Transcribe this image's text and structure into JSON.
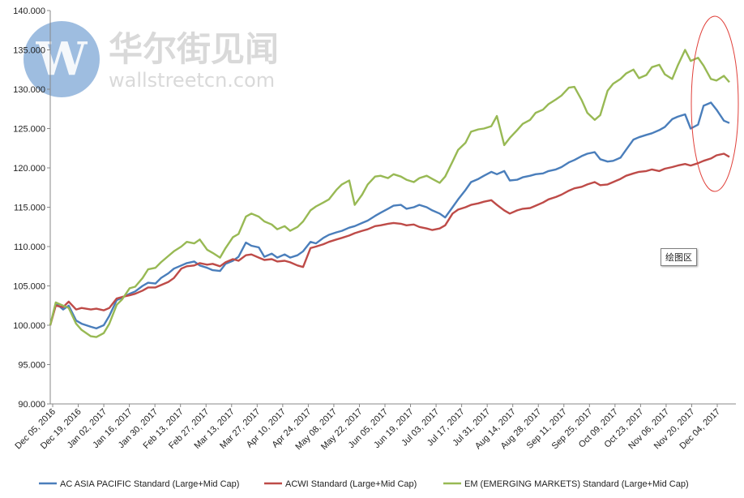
{
  "watermark": {
    "logo_letter": "W",
    "chinese": "华尔街见闻",
    "english": "wallstreetcn.com"
  },
  "tooltip": {
    "label": "绘图区"
  },
  "colors": {
    "asia_pacific": "#4a7ebb",
    "acwi": "#be4b48",
    "em": "#98b954",
    "annotation": "#e0403a",
    "axis": "#888888",
    "watermark_logo": "#4f86c6"
  },
  "chart_data": {
    "type": "line",
    "title": "",
    "xlabel": "",
    "ylabel": "",
    "ylim": [
      90,
      140
    ],
    "y_ticks": [
      90,
      95,
      100,
      105,
      110,
      115,
      120,
      125,
      130,
      135,
      140
    ],
    "y_tick_labels": [
      "90.000",
      "95.000",
      "100.000",
      "105.000",
      "110.000",
      "115.000",
      "120.000",
      "125.000",
      "130.000",
      "135.000",
      "140.000"
    ],
    "x_tick_labels": [
      "Dec 05, 2016",
      "Dec 19, 2016",
      "Jan 02, 2017",
      "Jan 16, 2017",
      "Jan 30, 2017",
      "Feb 13, 2017",
      "Feb 27, 2017",
      "Mar 13, 2017",
      "Mar 27, 2017",
      "Apr 10, 2017",
      "Apr 24, 2017",
      "May 08, 2017",
      "May 22, 2017",
      "Jun 05, 2017",
      "Jun 19, 2017",
      "Jul 03, 2017",
      "Jul 17, 2017",
      "Jul 31, 2017",
      "Aug 14, 2017",
      "Aug 28, 2017",
      "Sep 11, 2017",
      "Sep 25, 2017",
      "Oct 09, 2017",
      "Oct 23, 2017",
      "Nov 06, 2017",
      "Nov 20, 2017",
      "Dec 04, 2017"
    ],
    "grid": false,
    "legend_position": "bottom",
    "series": [
      {
        "name": "AC ASIA PACIFIC Standard (Large+Mid Cap)",
        "color": "#4a7ebb",
        "x": [
          "2016-12-05",
          "2016-12-08",
          "2016-12-12",
          "2016-12-15",
          "2016-12-19",
          "2016-12-22",
          "2016-12-27",
          "2016-12-30",
          "2017-01-03",
          "2017-01-06",
          "2017-01-10",
          "2017-01-13",
          "2017-01-17",
          "2017-01-20",
          "2017-01-24",
          "2017-01-27",
          "2017-01-31",
          "2017-02-03",
          "2017-02-07",
          "2017-02-10",
          "2017-02-14",
          "2017-02-17",
          "2017-02-21",
          "2017-02-24",
          "2017-02-28",
          "2017-03-03",
          "2017-03-07",
          "2017-03-10",
          "2017-03-14",
          "2017-03-17",
          "2017-03-21",
          "2017-03-24",
          "2017-03-28",
          "2017-03-31",
          "2017-04-04",
          "2017-04-07",
          "2017-04-11",
          "2017-04-14",
          "2017-04-18",
          "2017-04-21",
          "2017-04-25",
          "2017-04-28",
          "2017-05-02",
          "2017-05-05",
          "2017-05-09",
          "2017-05-12",
          "2017-05-16",
          "2017-05-19",
          "2017-05-23",
          "2017-05-26",
          "2017-05-30",
          "2017-06-02",
          "2017-06-06",
          "2017-06-09",
          "2017-06-13",
          "2017-06-16",
          "2017-06-20",
          "2017-06-23",
          "2017-06-27",
          "2017-06-30",
          "2017-07-04",
          "2017-07-07",
          "2017-07-11",
          "2017-07-14",
          "2017-07-18",
          "2017-07-21",
          "2017-07-25",
          "2017-07-28",
          "2017-08-01",
          "2017-08-04",
          "2017-08-08",
          "2017-08-11",
          "2017-08-15",
          "2017-08-18",
          "2017-08-22",
          "2017-08-25",
          "2017-08-29",
          "2017-09-01",
          "2017-09-05",
          "2017-09-08",
          "2017-09-12",
          "2017-09-15",
          "2017-09-19",
          "2017-09-22",
          "2017-09-26",
          "2017-09-29",
          "2017-10-03",
          "2017-10-06",
          "2017-10-10",
          "2017-10-13",
          "2017-10-17",
          "2017-10-20",
          "2017-10-24",
          "2017-10-27",
          "2017-10-31",
          "2017-11-03",
          "2017-11-07",
          "2017-11-10",
          "2017-11-14",
          "2017-11-17",
          "2017-11-21",
          "2017-11-24",
          "2017-11-28",
          "2017-12-01",
          "2017-12-05",
          "2017-12-08"
        ],
        "values": [
          100.0,
          102.8,
          102.0,
          102.5,
          100.6,
          100.2,
          99.8,
          99.6,
          100.0,
          101.2,
          103.2,
          103.5,
          104.0,
          104.3,
          105.0,
          105.4,
          105.3,
          106.0,
          106.6,
          107.2,
          107.6,
          107.9,
          108.1,
          107.6,
          107.3,
          107.0,
          106.9,
          107.8,
          108.2,
          108.7,
          110.5,
          110.1,
          109.9,
          108.7,
          109.1,
          108.6,
          109.0,
          108.6,
          108.9,
          109.4,
          110.6,
          110.4,
          111.1,
          111.5,
          111.8,
          112.0,
          112.4,
          112.6,
          113.0,
          113.3,
          113.9,
          114.3,
          114.8,
          115.2,
          115.3,
          114.8,
          115.0,
          115.3,
          115.0,
          114.6,
          114.2,
          113.7,
          115.0,
          116.0,
          117.2,
          118.2,
          118.6,
          119.0,
          119.5,
          119.2,
          119.6,
          118.4,
          118.5,
          118.8,
          119.0,
          119.2,
          119.3,
          119.6,
          119.8,
          120.1,
          120.7,
          121.0,
          121.5,
          121.8,
          122.0,
          121.1,
          120.8,
          120.9,
          121.3,
          122.3,
          123.6,
          123.9,
          124.2,
          124.4,
          124.8,
          125.2,
          126.2,
          126.5,
          126.8,
          125.0,
          125.5,
          127.9,
          128.3,
          127.4,
          126.0,
          125.7
        ]
      },
      {
        "name": "ACWI Standard (Large+Mid Cap)",
        "color": "#be4b48",
        "x": [
          "2016-12-05",
          "2016-12-08",
          "2016-12-12",
          "2016-12-15",
          "2016-12-19",
          "2016-12-22",
          "2016-12-27",
          "2016-12-30",
          "2017-01-03",
          "2017-01-06",
          "2017-01-10",
          "2017-01-13",
          "2017-01-17",
          "2017-01-20",
          "2017-01-24",
          "2017-01-27",
          "2017-01-31",
          "2017-02-03",
          "2017-02-07",
          "2017-02-10",
          "2017-02-14",
          "2017-02-17",
          "2017-02-21",
          "2017-02-24",
          "2017-02-28",
          "2017-03-03",
          "2017-03-07",
          "2017-03-10",
          "2017-03-14",
          "2017-03-17",
          "2017-03-21",
          "2017-03-24",
          "2017-03-28",
          "2017-03-31",
          "2017-04-04",
          "2017-04-07",
          "2017-04-11",
          "2017-04-14",
          "2017-04-18",
          "2017-04-21",
          "2017-04-25",
          "2017-04-28",
          "2017-05-02",
          "2017-05-05",
          "2017-05-09",
          "2017-05-12",
          "2017-05-16",
          "2017-05-19",
          "2017-05-23",
          "2017-05-26",
          "2017-05-30",
          "2017-06-02",
          "2017-06-06",
          "2017-06-09",
          "2017-06-13",
          "2017-06-16",
          "2017-06-20",
          "2017-06-23",
          "2017-06-27",
          "2017-06-30",
          "2017-07-04",
          "2017-07-07",
          "2017-07-11",
          "2017-07-14",
          "2017-07-18",
          "2017-07-21",
          "2017-07-25",
          "2017-07-28",
          "2017-08-01",
          "2017-08-04",
          "2017-08-08",
          "2017-08-11",
          "2017-08-15",
          "2017-08-18",
          "2017-08-22",
          "2017-08-25",
          "2017-08-29",
          "2017-09-01",
          "2017-09-05",
          "2017-09-08",
          "2017-09-12",
          "2017-09-15",
          "2017-09-19",
          "2017-09-22",
          "2017-09-26",
          "2017-09-29",
          "2017-10-03",
          "2017-10-06",
          "2017-10-10",
          "2017-10-13",
          "2017-10-17",
          "2017-10-20",
          "2017-10-24",
          "2017-10-27",
          "2017-10-31",
          "2017-11-03",
          "2017-11-07",
          "2017-11-10",
          "2017-11-14",
          "2017-11-17",
          "2017-11-21",
          "2017-11-24",
          "2017-11-28",
          "2017-12-01",
          "2017-12-05",
          "2017-12-08"
        ],
        "values": [
          100.0,
          102.5,
          102.3,
          103.0,
          102.0,
          102.2,
          102.0,
          102.1,
          101.9,
          102.2,
          103.4,
          103.6,
          103.8,
          104.0,
          104.4,
          104.8,
          104.8,
          105.1,
          105.5,
          106.0,
          107.2,
          107.5,
          107.6,
          107.9,
          107.7,
          107.8,
          107.5,
          108.0,
          108.4,
          108.2,
          108.9,
          109.0,
          108.6,
          108.3,
          108.4,
          108.1,
          108.2,
          108.0,
          107.6,
          107.4,
          109.8,
          110.0,
          110.3,
          110.6,
          110.9,
          111.1,
          111.4,
          111.7,
          112.0,
          112.2,
          112.6,
          112.7,
          112.9,
          113.0,
          112.9,
          112.7,
          112.8,
          112.5,
          112.3,
          112.1,
          112.3,
          112.7,
          114.2,
          114.7,
          115.0,
          115.3,
          115.5,
          115.7,
          115.9,
          115.3,
          114.6,
          114.2,
          114.6,
          114.8,
          114.9,
          115.2,
          115.6,
          116.0,
          116.3,
          116.6,
          117.1,
          117.4,
          117.6,
          117.9,
          118.2,
          117.8,
          117.9,
          118.2,
          118.6,
          119.0,
          119.3,
          119.5,
          119.6,
          119.8,
          119.6,
          119.9,
          120.1,
          120.3,
          120.5,
          120.3,
          120.6,
          120.9,
          121.2,
          121.6,
          121.8,
          121.4
        ]
      },
      {
        "name": "EM (EMERGING  MARKETS) Standard (Large+Mid Cap)",
        "color": "#98b954",
        "x": [
          "2016-12-05",
          "2016-12-08",
          "2016-12-12",
          "2016-12-15",
          "2016-12-19",
          "2016-12-22",
          "2016-12-27",
          "2016-12-30",
          "2017-01-03",
          "2017-01-06",
          "2017-01-10",
          "2017-01-13",
          "2017-01-17",
          "2017-01-20",
          "2017-01-24",
          "2017-01-27",
          "2017-01-31",
          "2017-02-03",
          "2017-02-07",
          "2017-02-10",
          "2017-02-14",
          "2017-02-17",
          "2017-02-21",
          "2017-02-24",
          "2017-02-28",
          "2017-03-03",
          "2017-03-07",
          "2017-03-10",
          "2017-03-14",
          "2017-03-17",
          "2017-03-21",
          "2017-03-24",
          "2017-03-28",
          "2017-03-31",
          "2017-04-04",
          "2017-04-07",
          "2017-04-11",
          "2017-04-14",
          "2017-04-18",
          "2017-04-21",
          "2017-04-25",
          "2017-04-28",
          "2017-05-02",
          "2017-05-05",
          "2017-05-09",
          "2017-05-12",
          "2017-05-16",
          "2017-05-19",
          "2017-05-23",
          "2017-05-26",
          "2017-05-30",
          "2017-06-02",
          "2017-06-06",
          "2017-06-09",
          "2017-06-13",
          "2017-06-16",
          "2017-06-20",
          "2017-06-23",
          "2017-06-27",
          "2017-06-30",
          "2017-07-04",
          "2017-07-07",
          "2017-07-11",
          "2017-07-14",
          "2017-07-18",
          "2017-07-21",
          "2017-07-25",
          "2017-07-28",
          "2017-08-01",
          "2017-08-04",
          "2017-08-08",
          "2017-08-11",
          "2017-08-15",
          "2017-08-18",
          "2017-08-22",
          "2017-08-25",
          "2017-08-29",
          "2017-09-01",
          "2017-09-05",
          "2017-09-08",
          "2017-09-12",
          "2017-09-15",
          "2017-09-19",
          "2017-09-22",
          "2017-09-26",
          "2017-09-29",
          "2017-10-03",
          "2017-10-06",
          "2017-10-10",
          "2017-10-13",
          "2017-10-17",
          "2017-10-20",
          "2017-10-24",
          "2017-10-27",
          "2017-10-31",
          "2017-11-03",
          "2017-11-07",
          "2017-11-10",
          "2017-11-14",
          "2017-11-17",
          "2017-11-21",
          "2017-11-24",
          "2017-11-28",
          "2017-12-01",
          "2017-12-05",
          "2017-12-08"
        ],
        "values": [
          100.0,
          102.9,
          102.5,
          102.2,
          100.2,
          99.4,
          98.6,
          98.5,
          99.0,
          100.2,
          102.6,
          103.3,
          104.7,
          104.9,
          106.0,
          107.1,
          107.3,
          108.0,
          108.8,
          109.4,
          110.0,
          110.6,
          110.4,
          110.9,
          109.6,
          109.2,
          108.6,
          109.8,
          111.2,
          111.6,
          113.8,
          114.2,
          113.8,
          113.2,
          112.8,
          112.2,
          112.6,
          112.0,
          112.5,
          113.2,
          114.6,
          115.1,
          115.6,
          116.0,
          117.2,
          117.9,
          118.4,
          115.3,
          116.6,
          117.9,
          118.9,
          119.0,
          118.7,
          119.2,
          118.9,
          118.5,
          118.2,
          118.7,
          119.0,
          118.6,
          118.1,
          118.9,
          120.8,
          122.3,
          123.2,
          124.6,
          124.9,
          125.0,
          125.3,
          126.6,
          122.9,
          123.8,
          124.8,
          125.6,
          126.1,
          127.0,
          127.4,
          128.1,
          128.7,
          129.2,
          130.2,
          130.3,
          128.6,
          127.0,
          126.1,
          126.7,
          129.8,
          130.7,
          131.3,
          132.0,
          132.5,
          131.4,
          131.8,
          132.8,
          133.1,
          131.9,
          131.3,
          133.0,
          135.0,
          133.6,
          134.0,
          133.0,
          131.3,
          131.1,
          131.7,
          130.9
        ]
      }
    ]
  }
}
